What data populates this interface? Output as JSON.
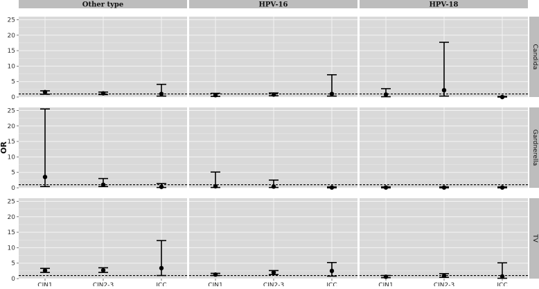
{
  "chart_data": {
    "type": "errorbar",
    "title": "",
    "ylabel": "OR",
    "xlabel": "",
    "ylim": [
      0,
      26
    ],
    "yticks": [
      0,
      5,
      10,
      15,
      20,
      25
    ],
    "categories": [
      "CIN1",
      "CIN2-3",
      "ICC"
    ],
    "columns": [
      "Other type",
      "HPV-16",
      "HPV-18"
    ],
    "rows": [
      "Candida",
      "Gardnerella",
      "TV"
    ],
    "reference_line": 1,
    "grid": true,
    "panels": [
      {
        "row": "Candida",
        "column": "Other type",
        "points": [
          {
            "x": "CIN1",
            "y": 1.6,
            "lo": 0.9,
            "hi": 2.0
          },
          {
            "x": "CIN2-3",
            "y": 1.2,
            "lo": 0.8,
            "hi": 1.6
          },
          {
            "x": "ICC",
            "y": 1.0,
            "lo": 0.3,
            "hi": 4.1
          }
        ]
      },
      {
        "row": "Candida",
        "column": "HPV-16",
        "points": [
          {
            "x": "CIN1",
            "y": 0.6,
            "lo": 0.2,
            "hi": 1.2
          },
          {
            "x": "CIN2-3",
            "y": 0.8,
            "lo": 0.4,
            "hi": 1.3
          },
          {
            "x": "ICC",
            "y": 1.0,
            "lo": 0.3,
            "hi": 7.2
          }
        ]
      },
      {
        "row": "Candida",
        "column": "HPV-18",
        "points": [
          {
            "x": "CIN1",
            "y": 0.8,
            "lo": 0.1,
            "hi": 2.7
          },
          {
            "x": "CIN2-3",
            "y": 2.2,
            "lo": 0.3,
            "hi": 17.7
          },
          {
            "x": "ICC",
            "y": 0.0,
            "lo": 0.0,
            "hi": 0.2
          }
        ]
      },
      {
        "row": "Gardnerella",
        "column": "Other type",
        "points": [
          {
            "x": "CIN1",
            "y": 3.5,
            "lo": 0.4,
            "hi": 25.5
          },
          {
            "x": "CIN2-3",
            "y": 1.0,
            "lo": 0.4,
            "hi": 3.0
          },
          {
            "x": "ICC",
            "y": 0.3,
            "lo": 0.1,
            "hi": 1.4
          }
        ]
      },
      {
        "row": "Gardnerella",
        "column": "HPV-16",
        "points": [
          {
            "x": "CIN1",
            "y": 0.5,
            "lo": 0.1,
            "hi": 5.1
          },
          {
            "x": "CIN2-3",
            "y": 0.4,
            "lo": 0.1,
            "hi": 2.5
          },
          {
            "x": "ICC",
            "y": 0.1,
            "lo": 0.0,
            "hi": 0.3
          }
        ]
      },
      {
        "row": "Gardnerella",
        "column": "HPV-18",
        "points": [
          {
            "x": "CIN1",
            "y": 0.1,
            "lo": 0.0,
            "hi": 0.3
          },
          {
            "x": "CIN2-3",
            "y": 0.1,
            "lo": 0.0,
            "hi": 0.3
          },
          {
            "x": "ICC",
            "y": 0.1,
            "lo": 0.0,
            "hi": 0.3
          }
        ]
      },
      {
        "row": "TV",
        "column": "Other type",
        "points": [
          {
            "x": "CIN1",
            "y": 2.6,
            "lo": 2.0,
            "hi": 3.3
          },
          {
            "x": "CIN2-3",
            "y": 2.7,
            "lo": 2.0,
            "hi": 3.5
          },
          {
            "x": "ICC",
            "y": 3.4,
            "lo": 1.0,
            "hi": 12.3
          }
        ]
      },
      {
        "row": "TV",
        "column": "HPV-16",
        "points": [
          {
            "x": "CIN1",
            "y": 1.3,
            "lo": 1.0,
            "hi": 1.7
          },
          {
            "x": "CIN2-3",
            "y": 2.0,
            "lo": 1.3,
            "hi": 2.6
          },
          {
            "x": "ICC",
            "y": 2.5,
            "lo": 0.8,
            "hi": 5.2
          }
        ]
      },
      {
        "row": "TV",
        "column": "HPV-18",
        "points": [
          {
            "x": "CIN1",
            "y": 0.6,
            "lo": 0.3,
            "hi": 1.0
          },
          {
            "x": "CIN2-3",
            "y": 0.9,
            "lo": 0.4,
            "hi": 1.6
          },
          {
            "x": "ICC",
            "y": 0.7,
            "lo": 0.1,
            "hi": 5.1
          }
        ]
      }
    ],
    "colors": {
      "panel_background": "#d9d9d9",
      "strip_background": "#bdbdbd",
      "grid": "#f4f4f4",
      "marks": "#000000"
    }
  }
}
